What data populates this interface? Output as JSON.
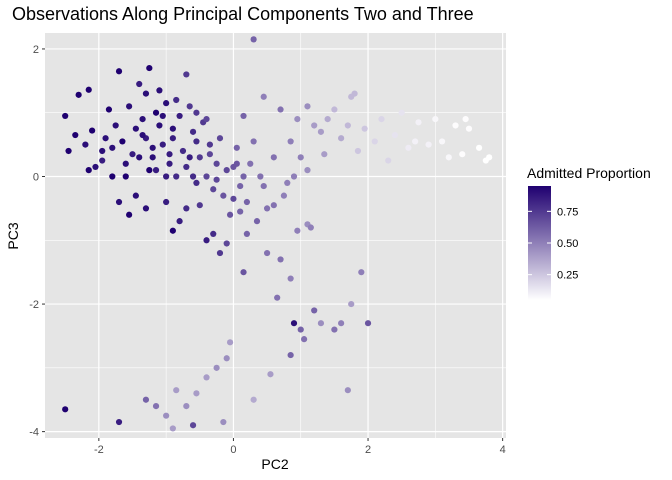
{
  "chart_data": {
    "type": "scatter",
    "title": "Observations Along Principal Components Two and Three",
    "xlabel": "PC2",
    "ylabel": "PC3",
    "xlim": [
      -2.8,
      4.05
    ],
    "ylim": [
      -4.1,
      2.25
    ],
    "x_ticks": [
      -2,
      0,
      2,
      4
    ],
    "y_ticks": [
      -4,
      -2,
      0,
      2
    ],
    "x_tick_labels": [
      "-2",
      "0",
      "2",
      "4"
    ],
    "y_tick_labels": [
      "-4",
      "-2",
      "0",
      "2"
    ],
    "grid": true,
    "panel_background": "#e5e5e5",
    "grid_color": "#ffffff",
    "legend": {
      "title": "Admitted Proportion",
      "position": "right",
      "range": [
        0.05,
        0.95
      ],
      "ticks": [
        0.25,
        0.5,
        0.75
      ],
      "tick_labels": [
        "0.25",
        "0.50",
        "0.75"
      ],
      "color_low": "#ffffff",
      "color_high": "#1f0070"
    },
    "points": [
      [
        -2.5,
        0.95,
        0.95
      ],
      [
        -2.45,
        0.4,
        0.95
      ],
      [
        -2.35,
        0.65,
        0.95
      ],
      [
        -2.3,
        1.28,
        0.95
      ],
      [
        -2.2,
        0.5,
        0.9
      ],
      [
        -2.15,
        1.36,
        0.95
      ],
      [
        -2.1,
        0.72,
        0.95
      ],
      [
        -2.15,
        0.1,
        0.95
      ],
      [
        -2.05,
        0.15,
        0.9
      ],
      [
        -1.95,
        0.25,
        0.85
      ],
      [
        -1.9,
        0.6,
        0.9
      ],
      [
        -1.85,
        1.05,
        0.95
      ],
      [
        -1.8,
        0.45,
        0.9
      ],
      [
        -1.95,
        0.4,
        0.9
      ],
      [
        -1.75,
        0.8,
        0.9
      ],
      [
        -1.7,
        1.65,
        0.95
      ],
      [
        -1.65,
        0.55,
        0.95
      ],
      [
        -1.6,
        0.2,
        0.9
      ],
      [
        -1.55,
        1.1,
        0.9
      ],
      [
        -1.5,
        0.35,
        0.85
      ],
      [
        -1.45,
        0.75,
        0.9
      ],
      [
        -1.4,
        0.3,
        0.9
      ],
      [
        -1.35,
        0.9,
        0.9
      ],
      [
        -1.3,
        0.6,
        0.85
      ],
      [
        -1.25,
        1.7,
        0.95
      ],
      [
        -1.2,
        0.45,
        0.9
      ],
      [
        -1.15,
        0.1,
        0.85
      ],
      [
        -1.1,
        0.8,
        0.9
      ],
      [
        -1.05,
        0.5,
        0.85
      ],
      [
        -1.0,
        1.15,
        0.9
      ],
      [
        -0.95,
        0.2,
        0.85
      ],
      [
        -0.9,
        0.6,
        0.85
      ],
      [
        -0.85,
        0.0,
        0.8
      ],
      [
        -0.8,
        0.95,
        0.85
      ],
      [
        -0.75,
        0.4,
        0.8
      ],
      [
        -0.7,
        0.15,
        0.8
      ],
      [
        -0.65,
        1.1,
        0.75
      ],
      [
        -0.6,
        0.7,
        0.8
      ],
      [
        -0.55,
        -0.1,
        0.8
      ],
      [
        -0.5,
        0.3,
        0.75
      ],
      [
        -0.45,
        0.85,
        0.75
      ],
      [
        -0.4,
        0.0,
        0.7
      ],
      [
        -0.35,
        0.5,
        0.75
      ],
      [
        -0.3,
        -0.2,
        0.7
      ],
      [
        -0.25,
        0.2,
        0.7
      ],
      [
        -0.2,
        0.6,
        0.7
      ],
      [
        -0.15,
        -0.3,
        0.65
      ],
      [
        -0.1,
        0.1,
        0.7
      ],
      [
        -0.05,
        -0.6,
        0.65
      ],
      [
        0.0,
        0.15,
        0.65
      ],
      [
        0.05,
        0.45,
        0.6
      ],
      [
        0.1,
        -0.15,
        0.6
      ],
      [
        0.15,
        0.95,
        0.6
      ],
      [
        0.2,
        -0.4,
        0.6
      ],
      [
        0.25,
        0.2,
        0.55
      ],
      [
        0.3,
        0.55,
        0.55
      ],
      [
        0.35,
        -0.7,
        0.6
      ],
      [
        0.4,
        0.0,
        0.55
      ],
      [
        0.45,
        1.25,
        0.5
      ],
      [
        0.5,
        -0.5,
        0.55
      ],
      [
        -1.6,
        0.0,
        0.95
      ],
      [
        -1.45,
        -0.3,
        0.9
      ],
      [
        -1.3,
        -0.5,
        0.9
      ],
      [
        -1.25,
        0.1,
        0.95
      ],
      [
        -1.55,
        -0.6,
        0.95
      ],
      [
        -1.7,
        -0.4,
        0.9
      ],
      [
        -1.8,
        0.0,
        0.95
      ],
      [
        -1.0,
        -0.4,
        0.85
      ],
      [
        -0.9,
        -0.85,
        0.95
      ],
      [
        -0.8,
        -0.7,
        0.85
      ],
      [
        -0.7,
        -0.5,
        0.8
      ],
      [
        -0.6,
        0.0,
        0.8
      ],
      [
        -0.5,
        -0.45,
        0.75
      ],
      [
        -0.4,
        -1.0,
        0.85
      ],
      [
        -0.3,
        -0.9,
        0.8
      ],
      [
        -0.2,
        -1.2,
        0.75
      ],
      [
        -0.1,
        -1.05,
        0.7
      ],
      [
        0.0,
        -0.35,
        0.7
      ],
      [
        0.1,
        -0.55,
        0.6
      ],
      [
        0.15,
        -1.5,
        0.65
      ],
      [
        -1.15,
        1.0,
        0.95
      ],
      [
        -1.05,
        0.95,
        0.9
      ],
      [
        -0.9,
        0.75,
        0.9
      ],
      [
        -1.3,
        1.3,
        0.9
      ],
      [
        -1.4,
        1.45,
        0.85
      ],
      [
        -1.1,
        1.35,
        0.9
      ],
      [
        -0.85,
        1.2,
        0.8
      ],
      [
        -0.7,
        1.6,
        0.75
      ],
      [
        -0.55,
        1.0,
        0.75
      ],
      [
        -0.4,
        0.9,
        0.7
      ],
      [
        0.3,
        2.15,
        0.6
      ],
      [
        0.7,
        1.05,
        0.55
      ],
      [
        0.85,
        0.55,
        0.5
      ],
      [
        0.95,
        0.9,
        0.45
      ],
      [
        1.0,
        0.3,
        0.5
      ],
      [
        1.1,
        1.1,
        0.45
      ],
      [
        1.2,
        0.8,
        0.4
      ],
      [
        1.3,
        0.7,
        0.4
      ],
      [
        1.4,
        0.9,
        0.35
      ],
      [
        1.5,
        1.05,
        0.3
      ],
      [
        1.6,
        0.6,
        0.35
      ],
      [
        1.7,
        0.8,
        0.3
      ],
      [
        1.8,
        1.3,
        0.3
      ],
      [
        1.85,
        0.4,
        0.25
      ],
      [
        1.95,
        0.75,
        0.25
      ],
      [
        2.1,
        0.55,
        0.2
      ],
      [
        2.2,
        0.9,
        0.2
      ],
      [
        2.3,
        0.25,
        0.2
      ],
      [
        2.4,
        0.65,
        0.15
      ],
      [
        2.5,
        1.0,
        0.15
      ],
      [
        2.6,
        0.45,
        0.12
      ],
      [
        2.75,
        0.85,
        0.1
      ],
      [
        2.9,
        0.5,
        0.1
      ],
      [
        3.0,
        0.9,
        0.08
      ],
      [
        3.1,
        0.55,
        0.08
      ],
      [
        3.2,
        0.3,
        0.08
      ],
      [
        3.3,
        0.8,
        0.06
      ],
      [
        3.4,
        0.35,
        0.06
      ],
      [
        3.5,
        0.75,
        0.06
      ],
      [
        3.65,
        0.45,
        0.05
      ],
      [
        3.75,
        0.25,
        0.05
      ],
      [
        3.8,
        0.3,
        0.05
      ],
      [
        3.45,
        0.9,
        0.06
      ],
      [
        2.7,
        0.55,
        0.1
      ],
      [
        1.75,
        1.25,
        0.3
      ],
      [
        0.6,
        0.3,
        0.55
      ],
      [
        0.8,
        -0.1,
        0.5
      ],
      [
        0.9,
        0.0,
        0.5
      ],
      [
        1.1,
        0.1,
        0.45
      ],
      [
        1.35,
        0.35,
        0.4
      ],
      [
        0.45,
        -0.15,
        0.55
      ],
      [
        0.6,
        -0.45,
        0.55
      ],
      [
        0.75,
        -0.3,
        0.5
      ],
      [
        0.95,
        -0.85,
        0.5
      ],
      [
        1.1,
        -0.75,
        0.45
      ],
      [
        0.2,
        -0.9,
        0.6
      ],
      [
        0.5,
        -1.2,
        0.55
      ],
      [
        0.7,
        -1.3,
        0.55
      ],
      [
        0.85,
        -1.6,
        0.5
      ],
      [
        0.65,
        -1.9,
        0.55
      ],
      [
        1.15,
        -0.8,
        0.5
      ],
      [
        0.9,
        -2.3,
        0.9
      ],
      [
        1.0,
        -2.4,
        0.6
      ],
      [
        1.2,
        -2.1,
        0.6
      ],
      [
        1.3,
        -2.3,
        0.45
      ],
      [
        1.5,
        -2.4,
        0.55
      ],
      [
        1.75,
        -2.0,
        0.4
      ],
      [
        1.9,
        -1.5,
        0.5
      ],
      [
        2.0,
        -2.3,
        0.65
      ],
      [
        1.6,
        -2.3,
        0.5
      ],
      [
        1.05,
        -2.55,
        0.55
      ],
      [
        0.85,
        -2.8,
        0.6
      ],
      [
        1.7,
        -3.35,
        0.45
      ],
      [
        0.55,
        -3.1,
        0.4
      ],
      [
        0.3,
        -3.5,
        0.35
      ],
      [
        -0.05,
        -2.6,
        0.4
      ],
      [
        -0.1,
        -2.85,
        0.45
      ],
      [
        -0.25,
        -3.0,
        0.45
      ],
      [
        -0.4,
        -3.15,
        0.4
      ],
      [
        -0.55,
        -3.4,
        0.4
      ],
      [
        -0.7,
        -3.6,
        0.45
      ],
      [
        -0.85,
        -3.35,
        0.4
      ],
      [
        -1.0,
        -3.75,
        0.45
      ],
      [
        -1.15,
        -3.6,
        0.55
      ],
      [
        -1.3,
        -3.5,
        0.6
      ],
      [
        -0.6,
        -3.9,
        0.7
      ],
      [
        -0.15,
        -3.85,
        0.45
      ],
      [
        -0.9,
        -3.95,
        0.4
      ],
      [
        -1.7,
        -3.85,
        0.85
      ],
      [
        -2.5,
        -3.65,
        0.95
      ],
      [
        -1.35,
        0.65,
        0.9
      ],
      [
        -1.2,
        0.3,
        0.9
      ],
      [
        -1.0,
        0.0,
        0.85
      ],
      [
        -0.95,
        0.35,
        0.85
      ],
      [
        -0.65,
        0.3,
        0.85
      ],
      [
        -0.55,
        0.55,
        0.8
      ],
      [
        -0.35,
        0.35,
        0.7
      ],
      [
        -0.25,
        -0.05,
        0.7
      ],
      [
        0.05,
        0.2,
        0.65
      ],
      [
        0.15,
        0.0,
        0.6
      ]
    ]
  }
}
